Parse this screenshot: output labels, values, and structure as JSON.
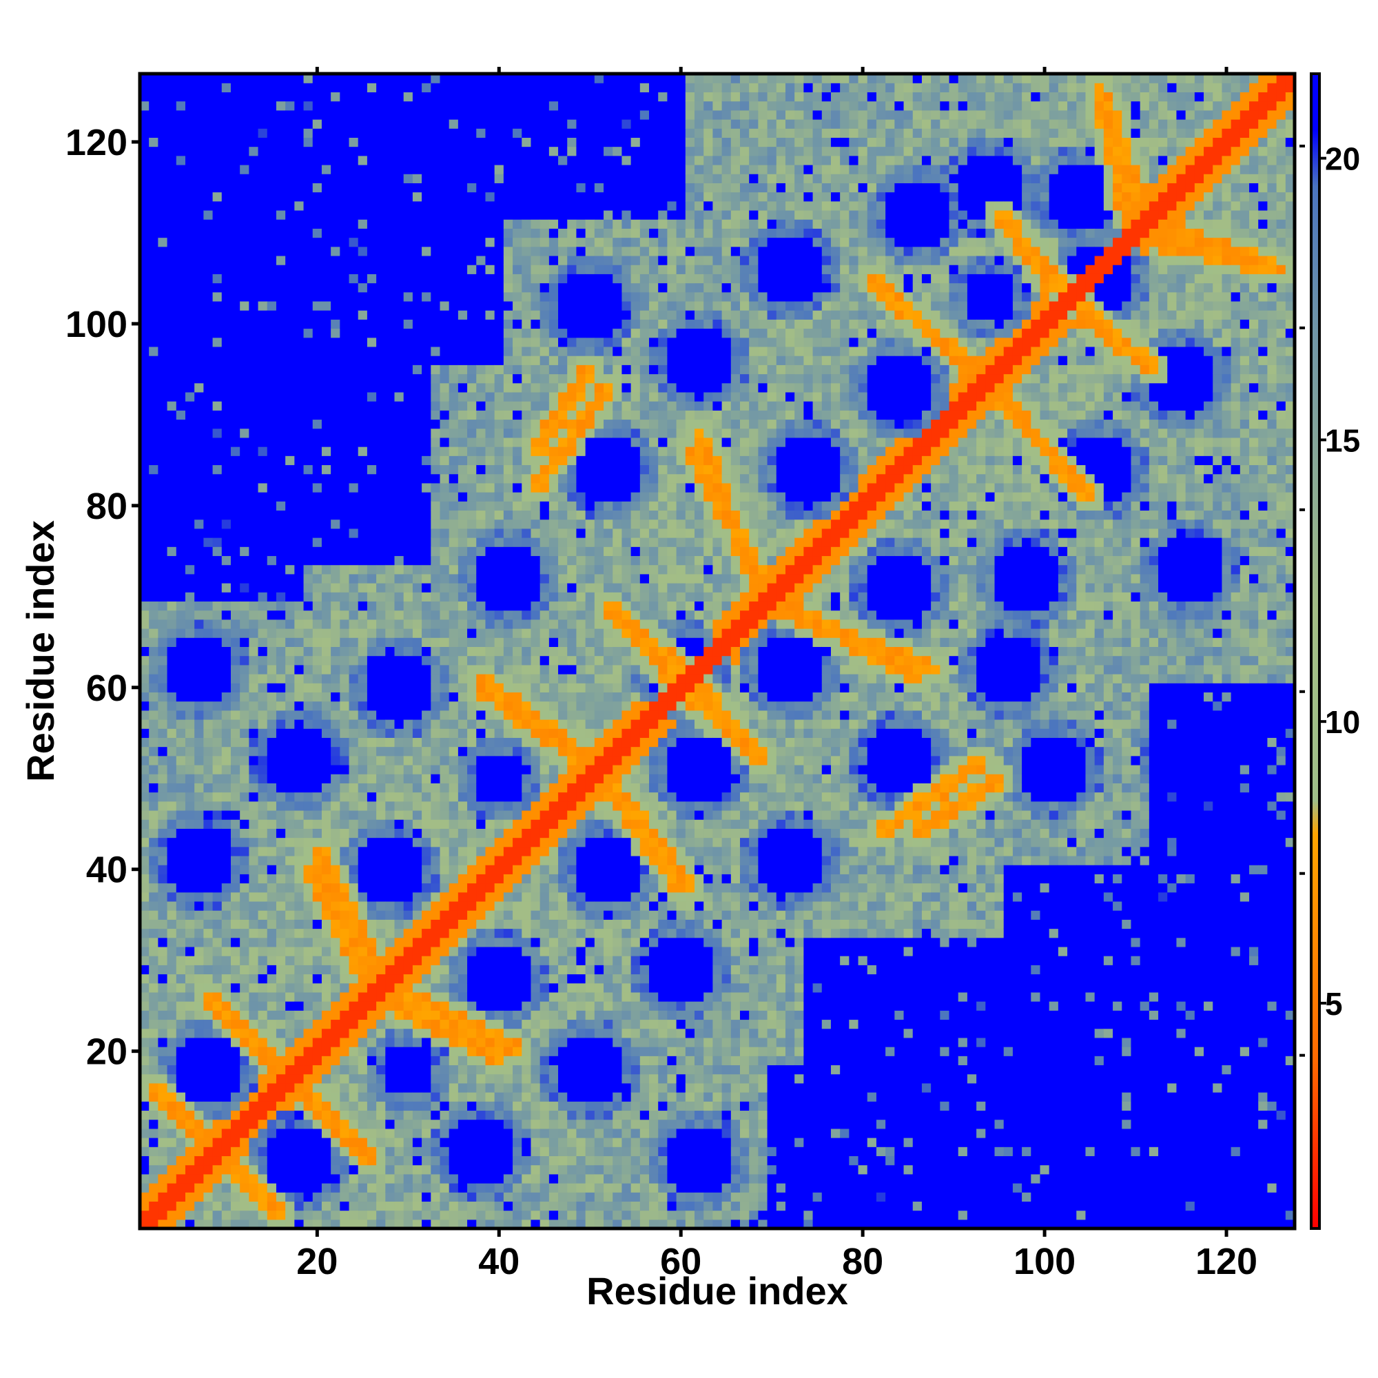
{
  "chart_data": {
    "type": "heatmap",
    "title": "",
    "xlabel": "Residue index",
    "ylabel": "Residue index",
    "n_residues": 127,
    "xlim": [
      1,
      127
    ],
    "ylim": [
      1,
      127
    ],
    "x_ticks": [
      20,
      40,
      60,
      80,
      100,
      120
    ],
    "y_ticks": [
      20,
      40,
      60,
      80,
      100,
      120
    ],
    "colorbar": {
      "range": [
        1,
        21.5
      ],
      "ticks": [
        5,
        10,
        15,
        20
      ],
      "stops": [
        {
          "value": 1,
          "color": "#ff0000"
        },
        {
          "value": 4,
          "color": "#ff6a00"
        },
        {
          "value": 8,
          "color": "#ffa500"
        },
        {
          "value": 8.6,
          "color": "#9fbf8a"
        },
        {
          "value": 12,
          "color": "#a3bd86"
        },
        {
          "value": 17,
          "color": "#6f95a8"
        },
        {
          "value": 19.5,
          "color": "#4a74c0"
        },
        {
          "value": 20.5,
          "color": "#0000ff"
        },
        {
          "value": 21.5,
          "color": "#0000ff"
        }
      ]
    },
    "background_value": 21,
    "contact_bands": [
      {
        "i0": 4,
        "j0": 14,
        "i1": 16,
        "j1": 2,
        "value": 6
      },
      {
        "i0": 8,
        "j0": 26,
        "i1": 26,
        "j1": 8,
        "value": 6
      },
      {
        "i0": 19,
        "j0": 40,
        "i1": 26,
        "j1": 27,
        "value": 6
      },
      {
        "i0": 26,
        "j0": 28,
        "i1": 42,
        "j1": 20,
        "value": 6
      },
      {
        "i0": 16,
        "j0": 19,
        "i1": 26,
        "j1": 8,
        "value": 6
      },
      {
        "i0": 38,
        "j0": 61,
        "i1": 50,
        "j1": 52,
        "value": 6
      },
      {
        "i0": 52,
        "j0": 49,
        "i1": 60,
        "j1": 38,
        "value": 6
      },
      {
        "i0": 52,
        "j0": 69,
        "i1": 60,
        "j1": 60,
        "value": 6
      },
      {
        "i0": 62,
        "j0": 60,
        "i1": 69,
        "j1": 52,
        "value": 6
      },
      {
        "i0": 61,
        "j0": 86,
        "i1": 70,
        "j1": 70,
        "value": 6
      },
      {
        "i0": 72,
        "j0": 68,
        "i1": 88,
        "j1": 62,
        "value": 6
      },
      {
        "i0": 44,
        "j0": 82,
        "i1": 52,
        "j1": 93,
        "value": 6
      },
      {
        "i0": 81,
        "j0": 105,
        "i1": 93,
        "j1": 94,
        "value": 6
      },
      {
        "i0": 95,
        "j0": 92,
        "i1": 104,
        "j1": 82,
        "value": 6
      },
      {
        "i0": 95,
        "j0": 112,
        "i1": 103,
        "j1": 103,
        "value": 6
      },
      {
        "i0": 104,
        "j0": 101,
        "i1": 112,
        "j1": 95,
        "value": 6
      },
      {
        "i0": 106,
        "j0": 126,
        "i1": 112,
        "j1": 110,
        "value": 6
      },
      {
        "i0": 112,
        "j0": 109,
        "i1": 126,
        "j1": 106,
        "value": 6
      },
      {
        "i0": 86,
        "j0": 44,
        "i1": 95,
        "j1": 50,
        "value": 6
      }
    ],
    "voids": [
      {
        "i": 8,
        "j": 18,
        "r": 4
      },
      {
        "i": 18,
        "j": 8,
        "r": 4
      },
      {
        "i": 18,
        "j": 52,
        "r": 4
      },
      {
        "i": 29,
        "j": 60,
        "r": 4
      },
      {
        "i": 7,
        "j": 62,
        "r": 4
      },
      {
        "i": 7,
        "j": 41,
        "r": 4
      },
      {
        "i": 28,
        "j": 40,
        "r": 4
      },
      {
        "i": 30,
        "j": 18,
        "r": 3
      },
      {
        "i": 40,
        "j": 28,
        "r": 4
      },
      {
        "i": 38,
        "j": 9,
        "r": 4
      },
      {
        "i": 50,
        "j": 18,
        "r": 4
      },
      {
        "i": 60,
        "j": 29,
        "r": 4
      },
      {
        "i": 62,
        "j": 8,
        "r": 4
      },
      {
        "i": 40,
        "j": 50,
        "r": 3
      },
      {
        "i": 52,
        "j": 40,
        "r": 4
      },
      {
        "i": 41,
        "j": 72,
        "r": 4
      },
      {
        "i": 52,
        "j": 84,
        "r": 4
      },
      {
        "i": 62,
        "j": 96,
        "r": 4
      },
      {
        "i": 60,
        "j": 62,
        "r": 4
      },
      {
        "i": 62,
        "j": 51,
        "r": 4
      },
      {
        "i": 72,
        "j": 41,
        "r": 4
      },
      {
        "i": 72,
        "j": 62,
        "r": 4
      },
      {
        "i": 84,
        "j": 52,
        "r": 4
      },
      {
        "i": 84,
        "j": 71,
        "r": 4
      },
      {
        "i": 74,
        "j": 84,
        "r": 4
      },
      {
        "i": 84,
        "j": 93,
        "r": 4
      },
      {
        "i": 96,
        "j": 62,
        "r": 4
      },
      {
        "i": 98,
        "j": 72,
        "r": 4
      },
      {
        "i": 106,
        "j": 84,
        "r": 4
      },
      {
        "i": 106,
        "j": 105,
        "r": 4
      },
      {
        "i": 115,
        "j": 94,
        "r": 4
      },
      {
        "i": 94,
        "j": 115,
        "r": 4
      },
      {
        "i": 101,
        "j": 51,
        "r": 4
      },
      {
        "i": 116,
        "j": 73,
        "r": 4
      },
      {
        "i": 116,
        "j": 52,
        "r": 4
      },
      {
        "i": 50,
        "j": 102,
        "r": 4
      },
      {
        "i": 72,
        "j": 106,
        "r": 4
      },
      {
        "i": 86,
        "j": 112,
        "r": 4
      },
      {
        "i": 104,
        "j": 114,
        "r": 4
      },
      {
        "i": 94,
        "j": 103,
        "r": 3
      }
    ],
    "far_regions": [
      {
        "i_min": 1,
        "i_max": 40,
        "j_min": 96,
        "j_max": 127
      },
      {
        "i_min": 1,
        "i_max": 18,
        "j_min": 70,
        "j_max": 127
      },
      {
        "i_min": 74,
        "i_max": 127,
        "j_min": 1,
        "j_max": 32
      },
      {
        "i_min": 100,
        "i_max": 127,
        "j_min": 1,
        "j_max": 40
      },
      {
        "i_min": 112,
        "i_max": 127,
        "j_min": 1,
        "j_max": 60
      },
      {
        "i_min": 92,
        "i_max": 127,
        "j_min": 1,
        "j_max": 22
      }
    ]
  }
}
